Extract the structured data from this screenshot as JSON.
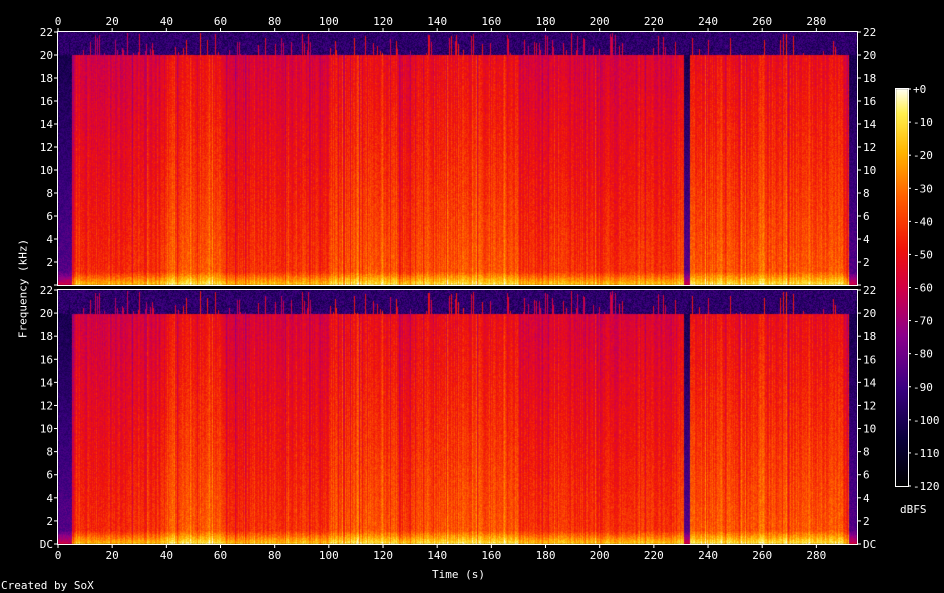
{
  "chart_data": {
    "type": "heatmap",
    "title": "",
    "xlabel": "Time (s)",
    "ylabel": "Frequency (kHz)",
    "x_ticks": [
      0,
      20,
      40,
      60,
      80,
      100,
      120,
      140,
      160,
      180,
      200,
      220,
      240,
      260,
      280
    ],
    "xlim": [
      0,
      295
    ],
    "y_ticks": [
      "DC",
      "2",
      "4",
      "6",
      "8",
      "10",
      "12",
      "14",
      "16",
      "18",
      "20",
      "22"
    ],
    "y_tick_values": [
      0,
      2,
      4,
      6,
      8,
      10,
      12,
      14,
      16,
      18,
      20,
      22
    ],
    "ylim": [
      0,
      22
    ],
    "channels": 2,
    "colorbar": {
      "label": "dBFS",
      "ticks": [
        "+0",
        "-10",
        "-20",
        "-30",
        "-40",
        "-50",
        "-60",
        "-70",
        "-80",
        "-90",
        "-100",
        "-110",
        "-120"
      ],
      "range": [
        -120,
        0
      ]
    },
    "loud_segments_s": [
      [
        40,
        60
      ],
      [
        100,
        125
      ],
      [
        130,
        170
      ],
      [
        230,
        290
      ]
    ],
    "quiet_segments_s": [
      [
        0,
        5
      ],
      [
        231,
        233
      ],
      [
        292,
        295
      ]
    ],
    "bandwidth_khz": 20
  },
  "footer": {
    "credit": "Created by SoX"
  },
  "colors": {
    "background": "#000000",
    "text": "#ffffff"
  }
}
